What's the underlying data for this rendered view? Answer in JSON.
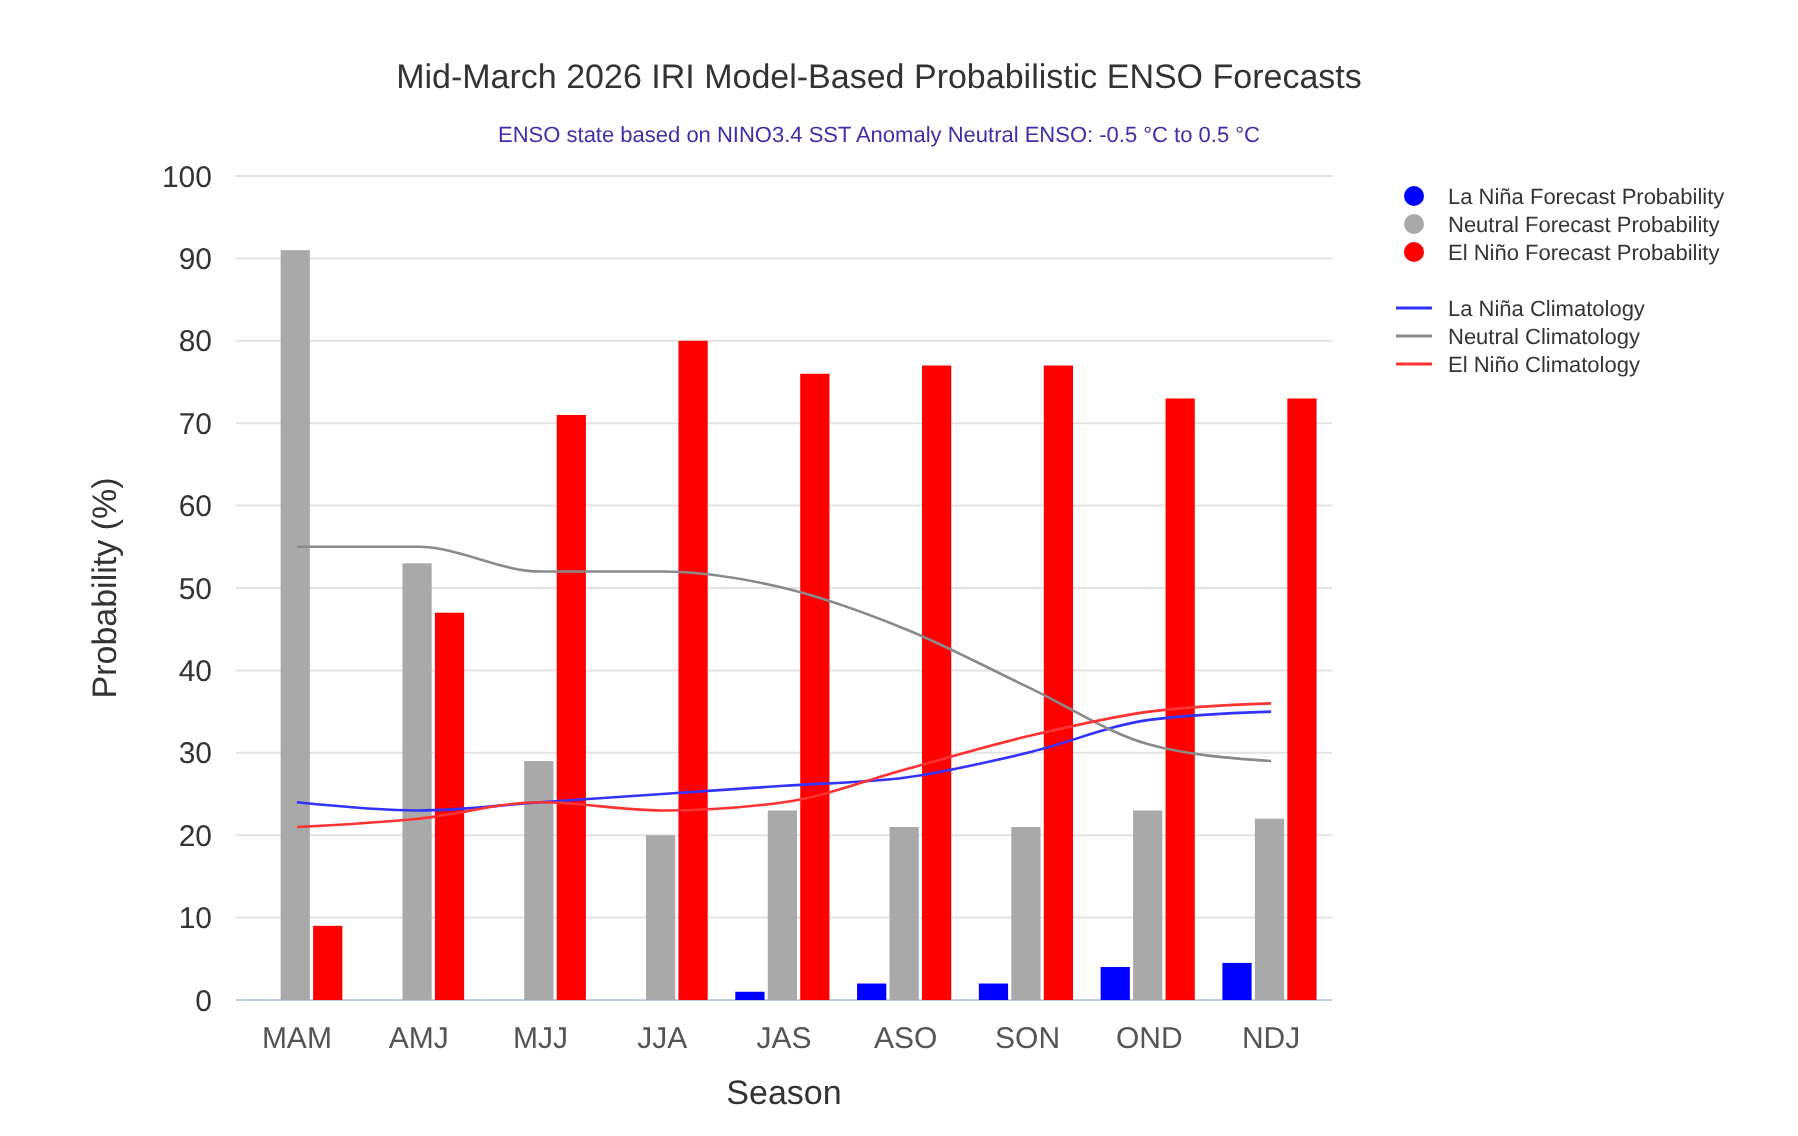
{
  "chart_data": {
    "type": "bar",
    "title": "Mid-March 2026 IRI Model-Based Probabilistic ENSO Forecasts",
    "subtitle": "ENSO state based on NINO3.4 SST Anomaly Neutral ENSO: -0.5 °C to 0.5 °C",
    "xlabel": "Season",
    "ylabel": "Probability (%)",
    "categories": [
      "MAM",
      "AMJ",
      "MJJ",
      "JJA",
      "JAS",
      "ASO",
      "SON",
      "OND",
      "NDJ"
    ],
    "series": [
      {
        "name": "La Niña Forecast Probability",
        "color": "#0000ff",
        "values": [
          0,
          0,
          0,
          0,
          1,
          2,
          2,
          4,
          4.5
        ]
      },
      {
        "name": "Neutral Forecast Probability",
        "color": "#a9a9a9",
        "values": [
          91,
          53,
          29,
          20,
          23,
          21,
          21,
          23,
          22
        ]
      },
      {
        "name": "El Niño Forecast Probability",
        "color": "#ff0000",
        "values": [
          9,
          47,
          71,
          80,
          76,
          77,
          77,
          73,
          73
        ]
      },
      {
        "name": "La Niña Climatology",
        "type": "line",
        "color": "#3333ff",
        "values": [
          24,
          23,
          24,
          25,
          26,
          27,
          30,
          34,
          35
        ]
      },
      {
        "name": "Neutral Climatology",
        "type": "line",
        "color": "#8a8a8a",
        "values": [
          55,
          55,
          52,
          52,
          50,
          45,
          38,
          31,
          29
        ]
      },
      {
        "name": "El Niño Climatology",
        "type": "line",
        "color": "#ff3333",
        "values": [
          21,
          22,
          24,
          23,
          24,
          28,
          32,
          35,
          36
        ]
      }
    ],
    "ylim": [
      0,
      100
    ],
    "yticks": [
      0,
      10,
      20,
      30,
      40,
      50,
      60,
      70,
      80,
      90,
      100
    ],
    "grid": "y",
    "legend": "top right",
    "marker": "none",
    "line_style": "solid"
  }
}
